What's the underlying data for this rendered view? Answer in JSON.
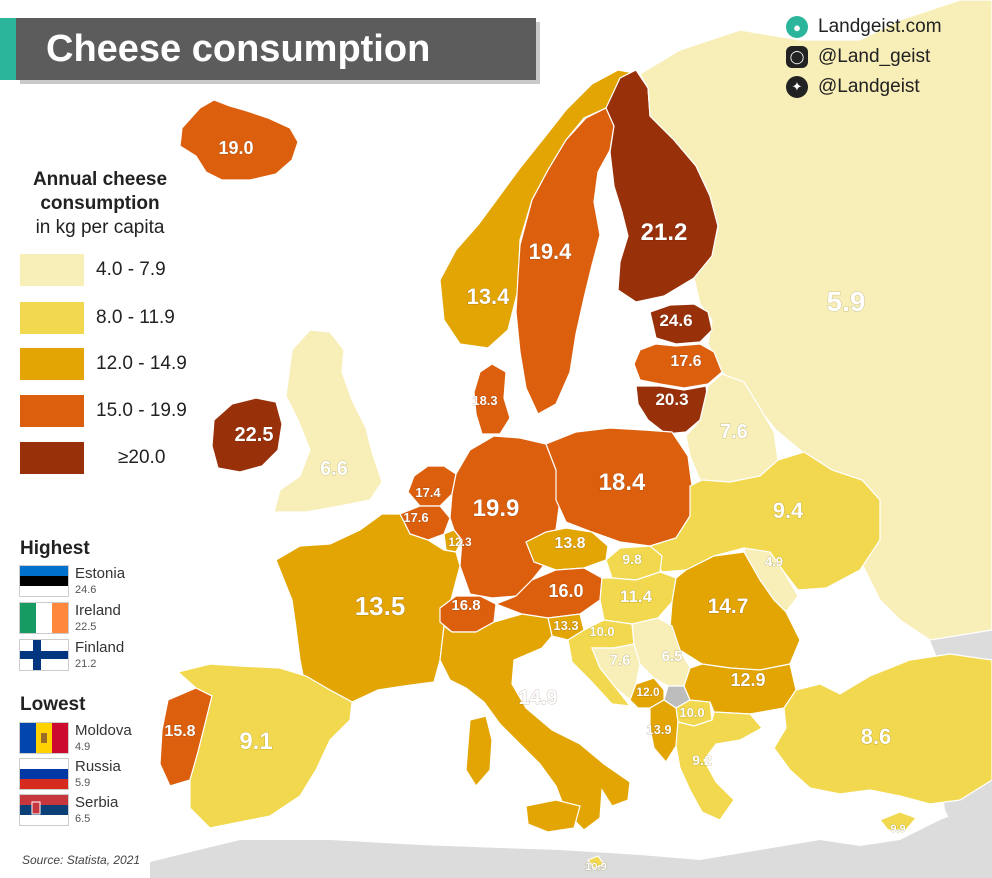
{
  "title": "Cheese consumption",
  "brand": {
    "website": "Landgeist.com",
    "instagram": "@Land_geist",
    "twitter": "@Landgeist",
    "website_icon": "globe-icon",
    "instagram_icon": "instagram-icon",
    "twitter_icon": "twitter-bird-icon"
  },
  "legend": {
    "title_line1": "Annual cheese",
    "title_line2": "consumption",
    "title_line3": "in kg per capita",
    "bins": [
      {
        "label": "4.0  -  7.9",
        "color": "#f7eeb8"
      },
      {
        "label": "8.0  -  11.9",
        "color": "#f2d84e"
      },
      {
        "label": "12.0 - 14.9",
        "color": "#e2a503"
      },
      {
        "label": "15.0 - 19.9",
        "color": "#db5f0d"
      },
      {
        "label": "≥20.0",
        "color": "#983009"
      }
    ]
  },
  "colors": {
    "no_data": "#dcdcdc",
    "sea": "#ffffff",
    "title_bg": "#5c5c5c",
    "title_accent": "#2bb59a"
  },
  "highest": {
    "heading": "Highest",
    "items": [
      {
        "country": "Estonia",
        "value": "24.6",
        "flag": "estonia-flag"
      },
      {
        "country": "Ireland",
        "value": "22.5",
        "flag": "ireland-flag"
      },
      {
        "country": "Finland",
        "value": "21.2",
        "flag": "finland-flag"
      }
    ]
  },
  "lowest": {
    "heading": "Lowest",
    "items": [
      {
        "country": "Moldova",
        "value": "4.9",
        "flag": "moldova-flag"
      },
      {
        "country": "Russia",
        "value": "5.9",
        "flag": "russia-flag"
      },
      {
        "country": "Serbia",
        "value": "6.5",
        "flag": "serbia-flag"
      }
    ]
  },
  "countries": [
    {
      "id": "iceland",
      "value": 19.0,
      "label": "19.0"
    },
    {
      "id": "norway",
      "value": 13.4,
      "label": "13.4"
    },
    {
      "id": "sweden",
      "value": 19.4,
      "label": "19.4"
    },
    {
      "id": "finland",
      "value": 21.2,
      "label": "21.2"
    },
    {
      "id": "russia",
      "value": 5.9,
      "label": "5.9"
    },
    {
      "id": "estonia",
      "value": 24.6,
      "label": "24.6"
    },
    {
      "id": "latvia",
      "value": 17.6,
      "label": "17.6"
    },
    {
      "id": "lithuania",
      "value": 20.3,
      "label": "20.3"
    },
    {
      "id": "belarus",
      "value": 7.6,
      "label": "7.6"
    },
    {
      "id": "denmark",
      "value": 18.3,
      "label": "18.3"
    },
    {
      "id": "ireland",
      "value": 22.5,
      "label": "22.5"
    },
    {
      "id": "uk",
      "value": 6.6,
      "label": "6.6"
    },
    {
      "id": "netherlands",
      "value": 17.4,
      "label": "17.4"
    },
    {
      "id": "belgium",
      "value": 17.6,
      "label": "17.6"
    },
    {
      "id": "luxembourg",
      "value": 12.3,
      "label": "12.3"
    },
    {
      "id": "germany",
      "value": 19.9,
      "label": "19.9"
    },
    {
      "id": "poland",
      "value": 18.4,
      "label": "18.4"
    },
    {
      "id": "ukraine",
      "value": 9.4,
      "label": "9.4"
    },
    {
      "id": "czechia",
      "value": 13.8,
      "label": "13.8"
    },
    {
      "id": "slovakia",
      "value": 9.8,
      "label": "9.8"
    },
    {
      "id": "moldova",
      "value": 4.9,
      "label": "4.9"
    },
    {
      "id": "france",
      "value": 13.5,
      "label": "13.5"
    },
    {
      "id": "switzerland",
      "value": 16.8,
      "label": "16.8"
    },
    {
      "id": "austria",
      "value": 16.0,
      "label": "16.0"
    },
    {
      "id": "hungary",
      "value": 11.4,
      "label": "11.4"
    },
    {
      "id": "romania",
      "value": 14.7,
      "label": "14.7"
    },
    {
      "id": "slovenia",
      "value": 13.3,
      "label": "13.3"
    },
    {
      "id": "croatia",
      "value": 10.0,
      "label": "10.0"
    },
    {
      "id": "bosnia",
      "value": 7.6,
      "label": "7.6"
    },
    {
      "id": "serbia",
      "value": 6.5,
      "label": "6.5"
    },
    {
      "id": "bulgaria",
      "value": 12.9,
      "label": "12.9"
    },
    {
      "id": "montenegro",
      "value": 12.0,
      "label": "12.0"
    },
    {
      "id": "north-macedonia",
      "value": 10.0,
      "label": "10.0"
    },
    {
      "id": "albania",
      "value": 13.9,
      "label": "13.9"
    },
    {
      "id": "greece",
      "value": 9.2,
      "label": "9.2"
    },
    {
      "id": "turkey",
      "value": 8.6,
      "label": "8.6"
    },
    {
      "id": "cyprus",
      "value": 9.9,
      "label": "9.9"
    },
    {
      "id": "malta",
      "value": 10.9,
      "label": "10.9"
    },
    {
      "id": "portugal",
      "value": 15.8,
      "label": "15.8"
    },
    {
      "id": "spain",
      "value": 9.1,
      "label": "9.1"
    },
    {
      "id": "italy",
      "value": 14.9,
      "label": "14.9"
    },
    {
      "id": "kosovo",
      "value": null,
      "label": ""
    }
  ],
  "source": "Source: Statista, 2021"
}
